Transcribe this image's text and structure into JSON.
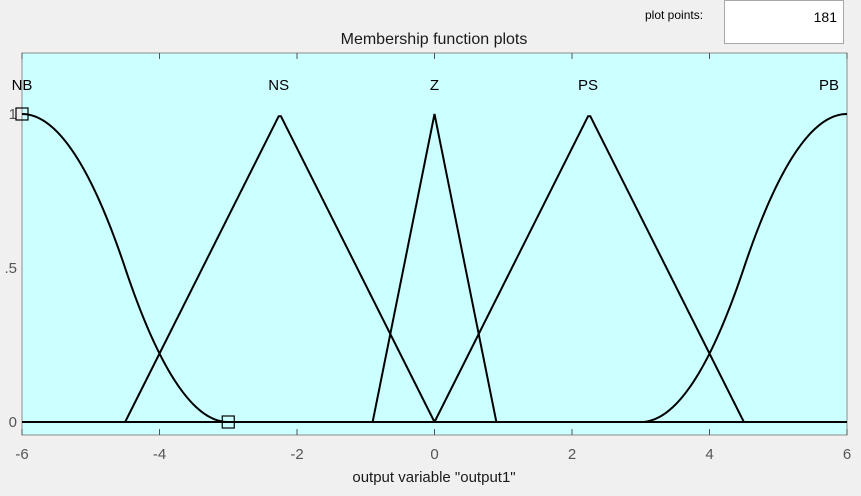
{
  "plot_points": {
    "label": "plot points:",
    "value": "181"
  },
  "chart_data": {
    "type": "line",
    "title": "Membership function plots",
    "xlabel": "output variable \"output1\"",
    "ylabel": "",
    "xlim": [
      -6,
      6
    ],
    "ylim": [
      0,
      1
    ],
    "x_ticks": [
      "-6",
      "-4",
      "-2",
      "0",
      "2",
      "4",
      "6"
    ],
    "y_ticks": [
      "0",
      ".5",
      "1"
    ],
    "grid": false,
    "background": "#ccffff",
    "series": [
      {
        "name": "NB",
        "kind": "zmf",
        "params": [
          -6,
          -3
        ]
      },
      {
        "name": "NS",
        "kind": "trimf",
        "params": [
          -4.5,
          -2.25,
          0
        ]
      },
      {
        "name": "Z",
        "kind": "trimf",
        "params": [
          -0.9,
          0,
          0.9
        ]
      },
      {
        "name": "PS",
        "kind": "trimf",
        "params": [
          0,
          2.25,
          4.5
        ]
      },
      {
        "name": "PB",
        "kind": "smf",
        "params": [
          3,
          6
        ]
      }
    ],
    "selected_series": "NB"
  }
}
